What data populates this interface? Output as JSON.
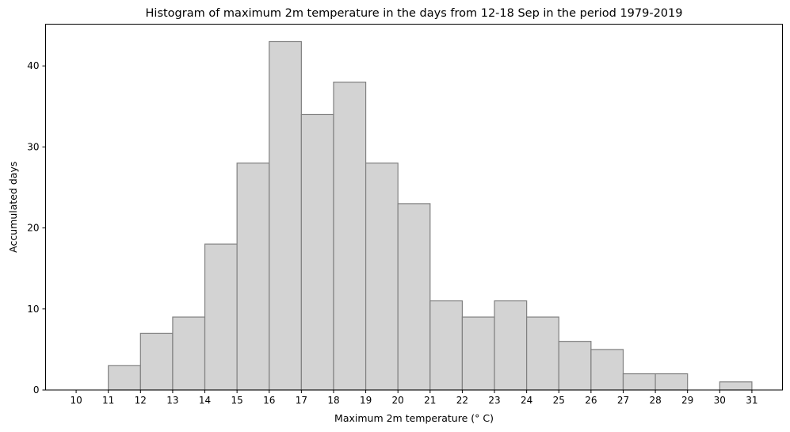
{
  "chart_data": {
    "type": "bar",
    "title": "Histogram of maximum 2m temperature in the days from 12-18 Sep in the period 1979-2019",
    "xlabel": "Maximum 2m temperature (° C)",
    "ylabel": "Accumulated days",
    "bins": [
      {
        "start": 11,
        "end": 12,
        "count": 3
      },
      {
        "start": 12,
        "end": 13,
        "count": 7
      },
      {
        "start": 13,
        "end": 14,
        "count": 9
      },
      {
        "start": 14,
        "end": 15,
        "count": 18
      },
      {
        "start": 15,
        "end": 16,
        "count": 28
      },
      {
        "start": 16,
        "end": 17,
        "count": 43
      },
      {
        "start": 17,
        "end": 18,
        "count": 34
      },
      {
        "start": 18,
        "end": 19,
        "count": 38
      },
      {
        "start": 19,
        "end": 20,
        "count": 28
      },
      {
        "start": 20,
        "end": 21,
        "count": 23
      },
      {
        "start": 21,
        "end": 22,
        "count": 11
      },
      {
        "start": 22,
        "end": 23,
        "count": 9
      },
      {
        "start": 23,
        "end": 24,
        "count": 11
      },
      {
        "start": 24,
        "end": 25,
        "count": 9
      },
      {
        "start": 25,
        "end": 26,
        "count": 6
      },
      {
        "start": 26,
        "end": 27,
        "count": 5
      },
      {
        "start": 27,
        "end": 28,
        "count": 2
      },
      {
        "start": 28,
        "end": 29,
        "count": 2
      },
      {
        "start": 30,
        "end": 31,
        "count": 1
      }
    ],
    "xticks": [
      "10",
      "11",
      "12",
      "13",
      "14",
      "15",
      "16",
      "17",
      "18",
      "19",
      "20",
      "21",
      "22",
      "23",
      "24",
      "25",
      "26",
      "27",
      "28",
      "29",
      "30",
      "31"
    ],
    "yticks": [
      "0",
      "10",
      "20",
      "30",
      "40"
    ],
    "xlim": [
      9.05,
      31.95
    ],
    "ylim": [
      0,
      45.15
    ],
    "grid": false,
    "colors": {
      "bar_fill": "#d3d3d3",
      "bar_edge": "#808080"
    }
  }
}
